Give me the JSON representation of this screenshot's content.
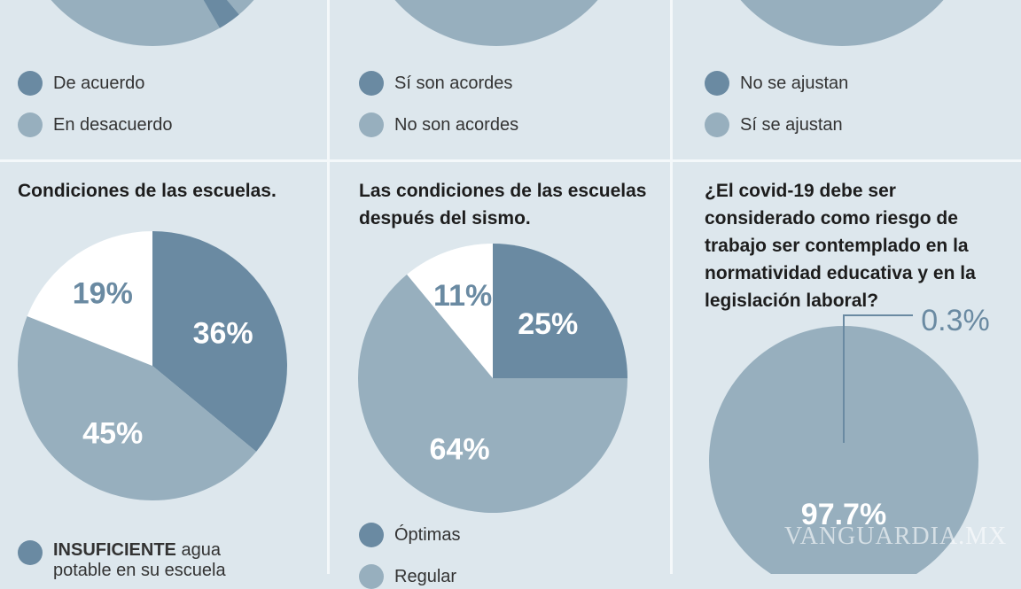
{
  "colors": {
    "dark": "#6a8aa2",
    "medium": "#97afbe",
    "light": "#ffffff",
    "background": "#dde7ed"
  },
  "panels": [
    {
      "legend": [
        "De acuerdo",
        "En desacuerdo"
      ]
    },
    {
      "legend": [
        "Sí son acordes",
        "No son acordes"
      ]
    },
    {
      "legend": [
        "No se ajustan",
        "Sí se ajustan"
      ]
    }
  ],
  "chart_data": [
    {
      "type": "pie",
      "title": "Condiciones de las escuelas.",
      "values": [
        36,
        45,
        19
      ],
      "labels": [
        "36%",
        "45%",
        "19%"
      ],
      "legend": [
        {
          "bold": "INSUFICIENTE",
          "text": " agua",
          "line2": "potable en su escuela"
        }
      ]
    },
    {
      "type": "pie",
      "title": "Las condiciones de las escuelas después del sismo.",
      "values": [
        25,
        64,
        11
      ],
      "labels": [
        "25%",
        "64%",
        "11%"
      ],
      "legend": [
        "Óptimas",
        "Regular"
      ]
    },
    {
      "type": "pie",
      "title": "¿El covid-19 debe ser considerado como riesgo de trabajo ser contemplado en la normatividad educativa y en la legislación laboral?",
      "values": [
        97.7,
        0.3
      ],
      "labels": [
        "97.7%",
        "0.3%"
      ]
    }
  ],
  "watermark": "VANGUARDIA.MX"
}
